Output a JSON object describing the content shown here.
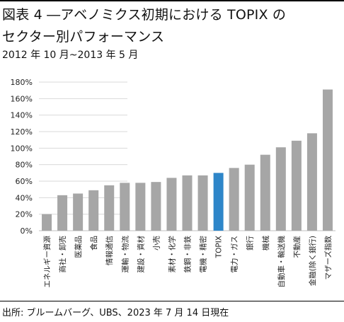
{
  "header": {
    "title_line1": "図表 4 ―アベノミクス初期における TOPIX の",
    "title_line2": "セクター別パフォーマンス",
    "subtitle": "2012 年 10 月~2013 年 5 月"
  },
  "footer": {
    "source": "出所: ブルームバーグ、UBS、2023 年 7 月 14 日現在"
  },
  "colors": {
    "bar": "#a6a6a6",
    "highlight": "#2e86c9",
    "grid": "#d9d9d9"
  },
  "chart_data": {
    "type": "bar",
    "title": "",
    "xlabel": "",
    "ylabel": "",
    "ylim": [
      0,
      180
    ],
    "yticks": [
      "0%",
      "20%",
      "40%",
      "60%",
      "80%",
      "100%",
      "120%",
      "140%",
      "160%",
      "180%"
    ],
    "grid": true,
    "highlight_category": "TOPIX",
    "categories": [
      "エネルギー資源",
      "商社・卸売",
      "医薬品",
      "食品",
      "情報通信",
      "運輸・物流",
      "建設・資材",
      "小売",
      "素材・化学",
      "鉄鋼・非鉄",
      "電機・精密",
      "TOPIX",
      "電力・ガス",
      "銀行",
      "機械",
      "自動車・輸送機",
      "不動産",
      "金融(除く銀行)",
      "マザーズ指数"
    ],
    "values": [
      20,
      43,
      45,
      49,
      55,
      58,
      58,
      59,
      64,
      67,
      67,
      70,
      76,
      80,
      92,
      101,
      109,
      118,
      171
    ]
  }
}
